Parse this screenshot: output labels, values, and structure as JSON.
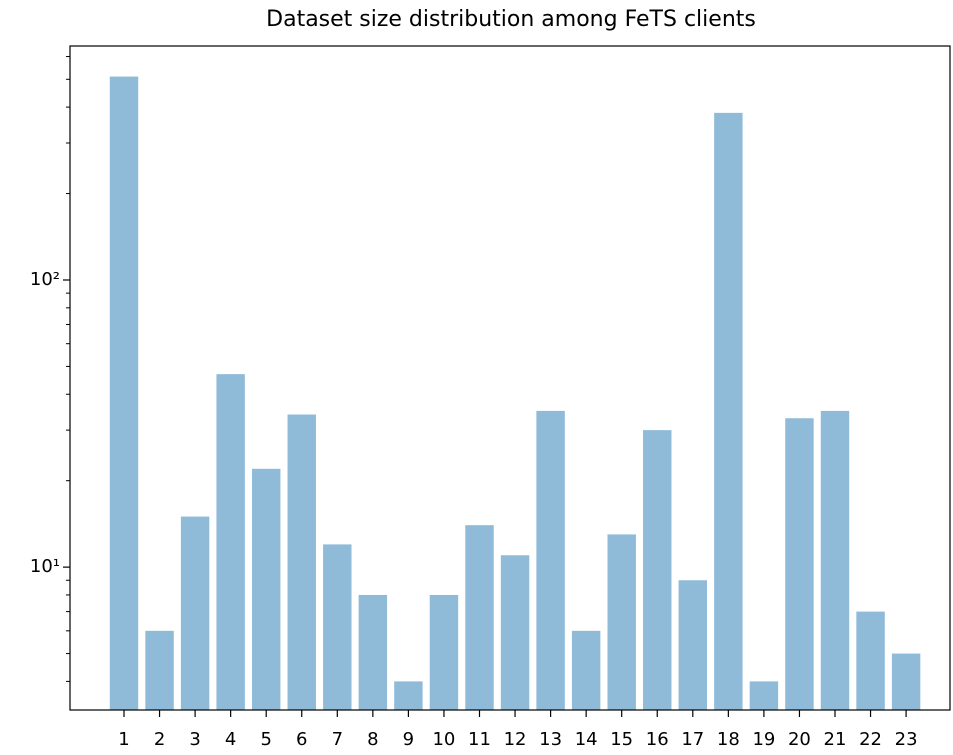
{
  "chart_data": {
    "type": "bar",
    "title": "Dataset size distribution among FeTS clients",
    "categories": [
      "1",
      "2",
      "3",
      "4",
      "5",
      "6",
      "7",
      "8",
      "9",
      "10",
      "11",
      "12",
      "13",
      "14",
      "15",
      "16",
      "17",
      "18",
      "19",
      "20",
      "21",
      "22",
      "23"
    ],
    "values": [
      511,
      6,
      15,
      47,
      22,
      34,
      12,
      8,
      4,
      8,
      14,
      11,
      35,
      6,
      13,
      30,
      9,
      382,
      4,
      33,
      35,
      7,
      5
    ],
    "color": "#8fbbd9",
    "log_scale": true,
    "ylim": [
      3.18,
      653
    ],
    "yticks": [
      {
        "value": 10,
        "label": "10¹"
      },
      {
        "value": 100,
        "label": "10²"
      }
    ],
    "minor_yticks": [
      4,
      5,
      6,
      7,
      8,
      9,
      20,
      30,
      40,
      50,
      60,
      70,
      80,
      90,
      200,
      300,
      400,
      500,
      600
    ]
  }
}
